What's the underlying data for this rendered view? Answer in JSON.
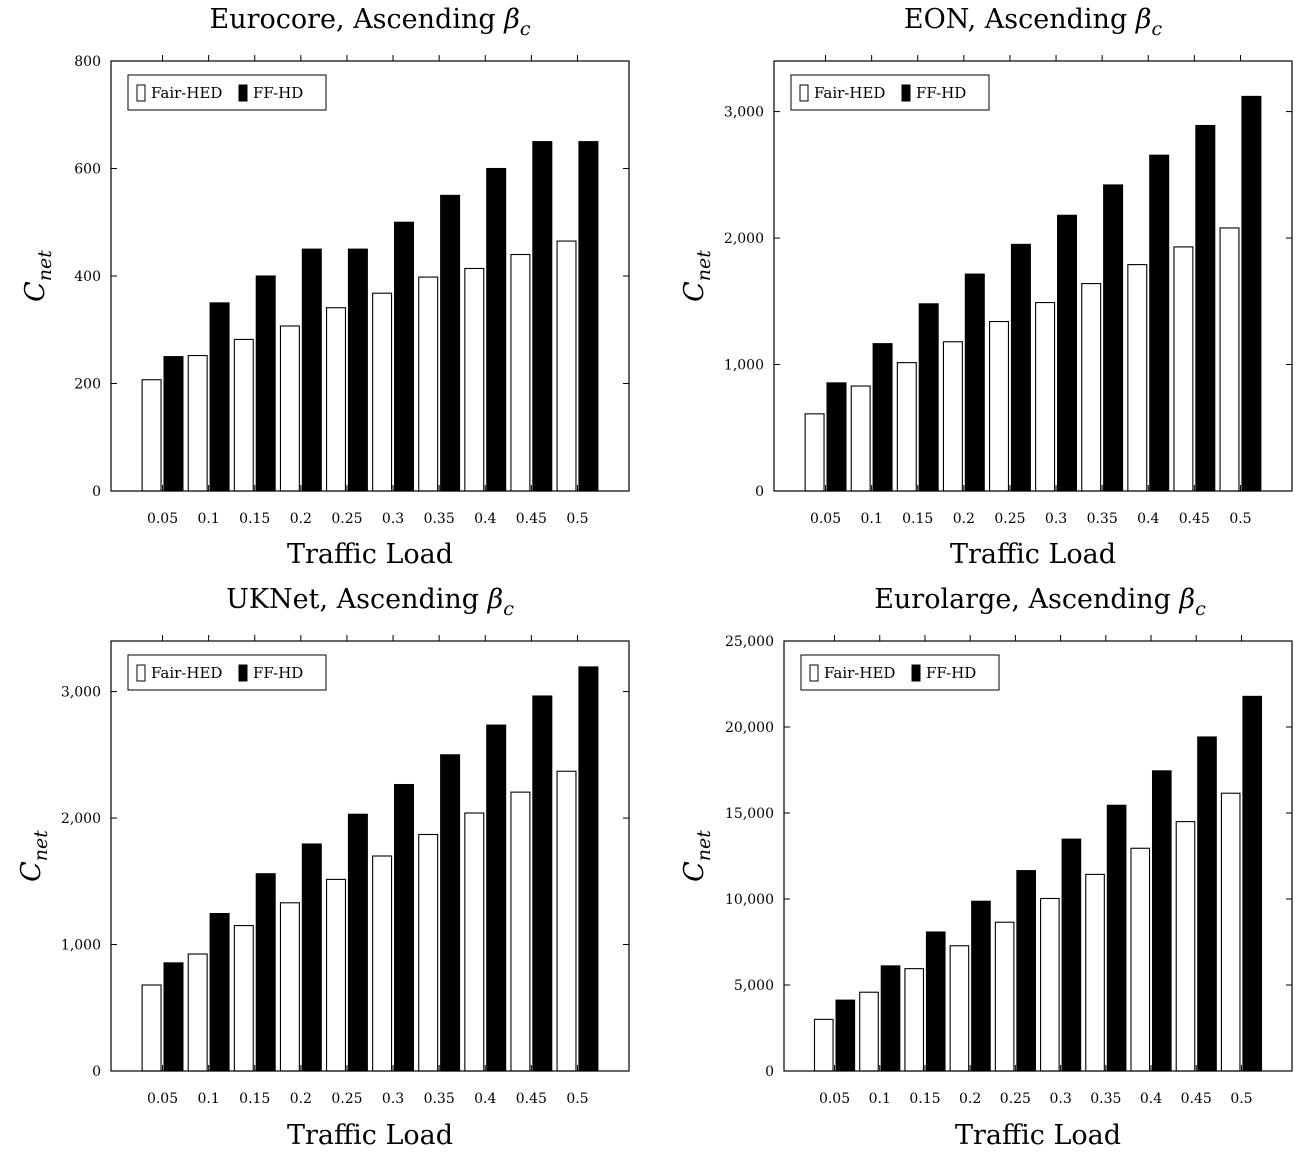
{
  "chart_data": [
    {
      "type": "bar",
      "title": "Eurocore, Ascending βc",
      "title_main": "Eurocore, Ascending ",
      "title_beta": "β",
      "title_sub": "c",
      "xlabel": "Traffic Load",
      "ylabel_main": "C",
      "ylabel_sub": "net",
      "categories": [
        "0.05",
        "0.1",
        "0.15",
        "0.2",
        "0.25",
        "0.3",
        "0.35",
        "0.4",
        "0.45",
        "0.5"
      ],
      "ylim": [
        0,
        800
      ],
      "yticks": [
        0,
        200,
        400,
        600,
        800
      ],
      "ytick_labels": [
        "0",
        "200",
        "400",
        "600",
        "800"
      ],
      "legend_position": "top-left",
      "grid": false,
      "series": [
        {
          "name": "Fair-HED",
          "color": "#ffffff",
          "values": [
            207,
            252,
            282,
            307,
            341,
            368,
            398,
            414,
            440,
            465
          ]
        },
        {
          "name": "FF-HD",
          "color": "#000000",
          "values": [
            250,
            350,
            400,
            450,
            450,
            500,
            550,
            600,
            650,
            650
          ]
        }
      ]
    },
    {
      "type": "bar",
      "title": "EON, Ascending βc",
      "title_main": "EON, Ascending ",
      "title_beta": "β",
      "title_sub": "c",
      "xlabel": "Traffic Load",
      "ylabel_main": "C",
      "ylabel_sub": "net",
      "categories": [
        "0.05",
        "0.1",
        "0.15",
        "0.2",
        "0.25",
        "0.3",
        "0.35",
        "0.4",
        "0.45",
        "0.5"
      ],
      "ylim": [
        0,
        3400
      ],
      "yticks": [
        0,
        1000,
        2000,
        3000
      ],
      "ytick_labels": [
        "0",
        "1,000",
        "2,000",
        "3,000"
      ],
      "legend_position": "top-left",
      "grid": false,
      "series": [
        {
          "name": "Fair-HED",
          "color": "#ffffff",
          "values": [
            610,
            830,
            1015,
            1180,
            1340,
            1490,
            1640,
            1790,
            1930,
            2080
          ]
        },
        {
          "name": "FF-HD",
          "color": "#000000",
          "values": [
            855,
            1165,
            1480,
            1715,
            1950,
            2180,
            2420,
            2655,
            2890,
            3120
          ]
        }
      ]
    },
    {
      "type": "bar",
      "title": "UKNet, Ascending βc",
      "title_main": "UKNet, Ascending ",
      "title_beta": "β",
      "title_sub": "c",
      "xlabel": "Traffic Load",
      "ylabel_main": "C",
      "ylabel_sub": "net",
      "categories": [
        "0.05",
        "0.1",
        "0.15",
        "0.2",
        "0.25",
        "0.3",
        "0.35",
        "0.4",
        "0.45",
        "0.5"
      ],
      "ylim": [
        0,
        3400
      ],
      "yticks": [
        0,
        1000,
        2000,
        3000
      ],
      "ytick_labels": [
        "0",
        "1,000",
        "2,000",
        "3,000"
      ],
      "legend_position": "top-left",
      "grid": false,
      "series": [
        {
          "name": "Fair-HED",
          "color": "#ffffff",
          "values": [
            680,
            925,
            1150,
            1330,
            1515,
            1700,
            1870,
            2040,
            2205,
            2370
          ]
        },
        {
          "name": "FF-HD",
          "color": "#000000",
          "values": [
            855,
            1245,
            1560,
            1795,
            2030,
            2265,
            2500,
            2735,
            2965,
            3195
          ]
        }
      ]
    },
    {
      "type": "bar",
      "title": "Eurolarge, Ascending βc",
      "title_main": "Eurolarge, Ascending ",
      "title_beta": "β",
      "title_sub": "c",
      "xlabel": "Traffic Load",
      "ylabel_main": "C",
      "ylabel_sub": "net",
      "categories": [
        "0.05",
        "0.1",
        "0.15",
        "0.2",
        "0.25",
        "0.3",
        "0.35",
        "0.4",
        "0.45",
        "0.5"
      ],
      "ylim": [
        0,
        25000
      ],
      "yticks": [
        0,
        5000,
        10000,
        15000,
        20000,
        25000
      ],
      "ytick_labels": [
        "0",
        "5,000",
        "10,000",
        "15,000",
        "20,000",
        "25,000"
      ],
      "legend_position": "top-left",
      "grid": false,
      "series": [
        {
          "name": "Fair-HED",
          "color": "#ffffff",
          "values": [
            3000,
            4580,
            5950,
            7280,
            8650,
            10030,
            11430,
            12950,
            14500,
            16150
          ]
        },
        {
          "name": "FF-HD",
          "color": "#000000",
          "values": [
            4120,
            6110,
            8080,
            9870,
            11650,
            13480,
            15450,
            17450,
            19420,
            21780
          ]
        }
      ]
    }
  ]
}
